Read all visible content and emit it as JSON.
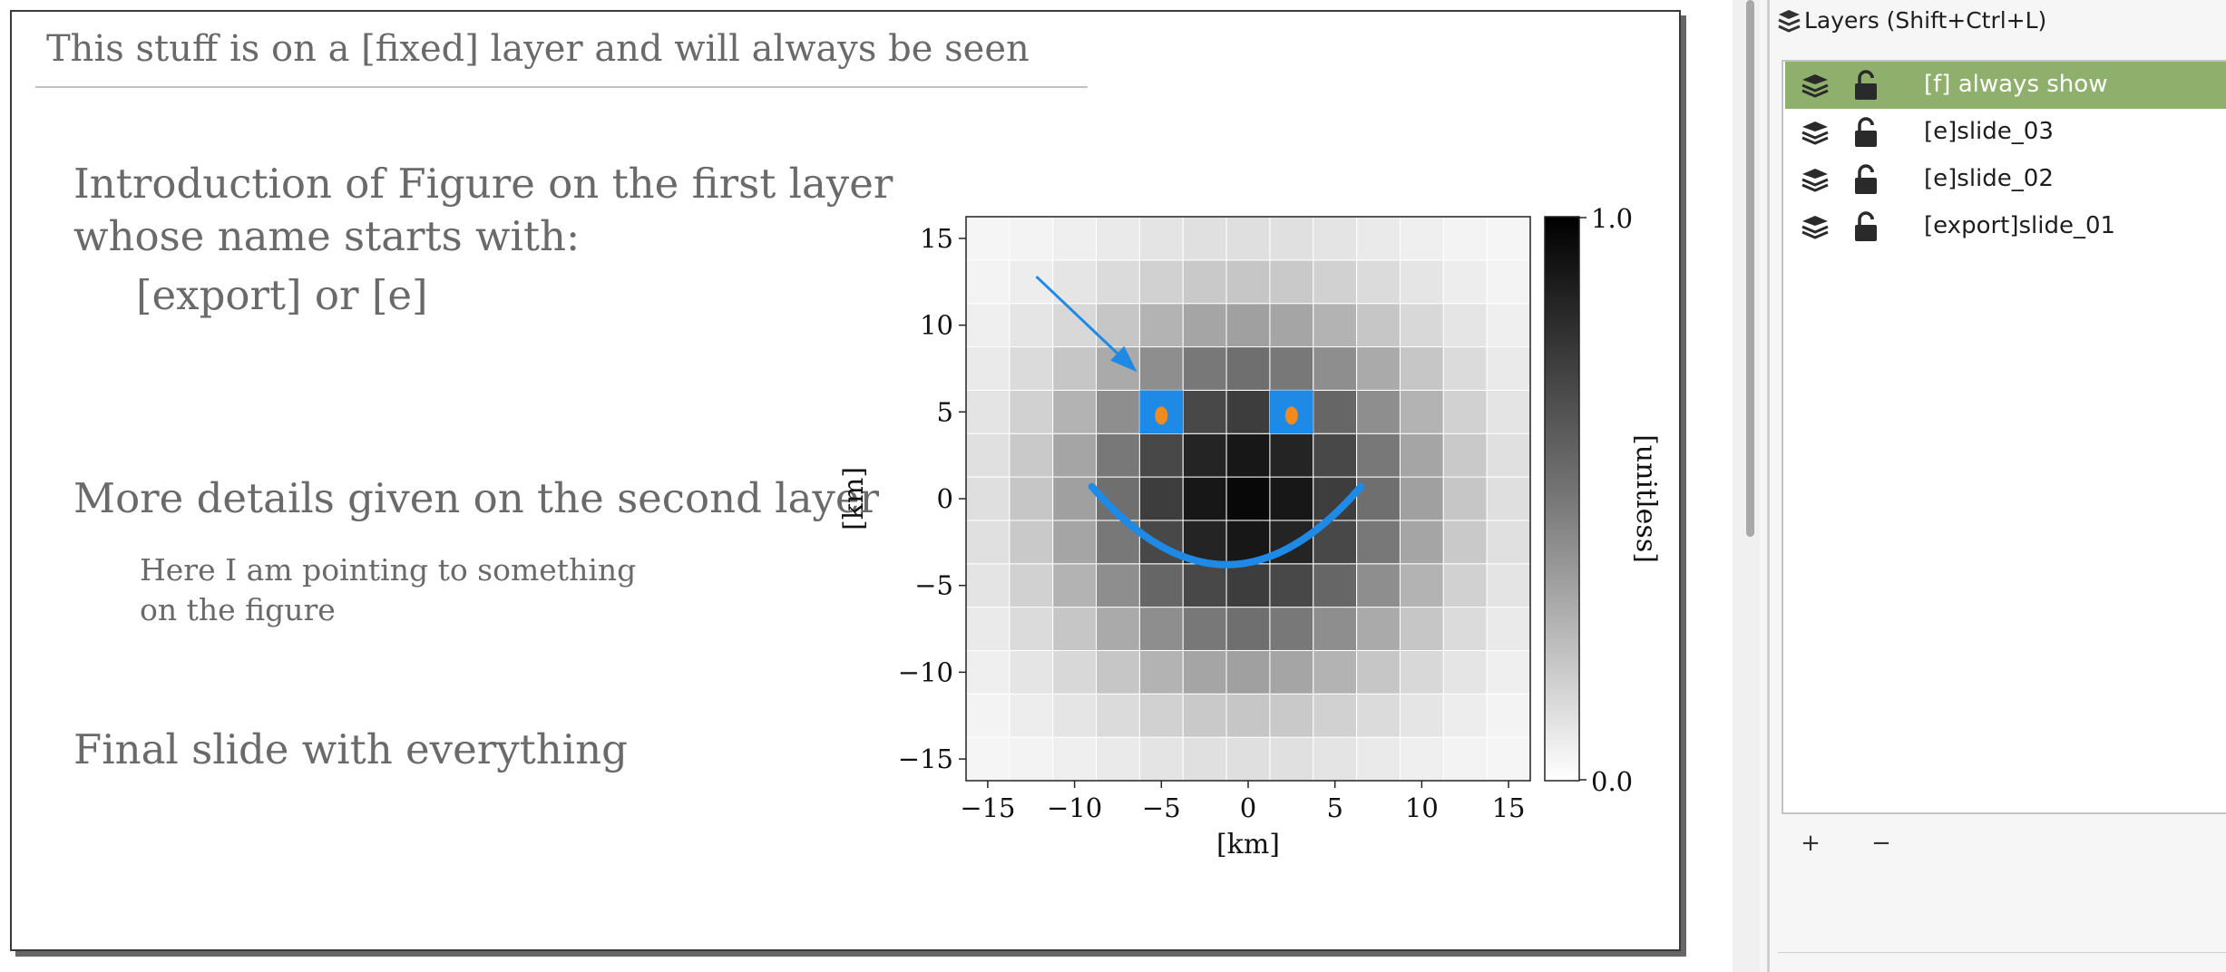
{
  "canvas": {
    "fixed_text": "This stuff is on a [fixed] layer and will always be seen",
    "intro_line1": "Introduction of Figure on the first layer",
    "intro_line2": "whose name starts with:",
    "intro_line3": "[export] or [e]",
    "details": "More details given on the second layer",
    "pointing_line1": "Here I am pointing to something",
    "pointing_line2": "on the figure",
    "final": "Final slide with everything"
  },
  "layers_panel": {
    "title": "Layers (Shift+Ctrl+L)",
    "layers": [
      {
        "name": "[f] always show",
        "selected": true,
        "visible": true,
        "locked": false
      },
      {
        "name": "[e]slide_03",
        "selected": false,
        "visible": true,
        "locked": false
      },
      {
        "name": "[e]slide_02",
        "selected": false,
        "visible": true,
        "locked": false
      },
      {
        "name": "[export]slide_01",
        "selected": false,
        "visible": true,
        "locked": false
      }
    ],
    "add_label": "+",
    "remove_label": "−",
    "selected_color": "#8fb06c"
  },
  "chart_data": {
    "type": "heatmap",
    "xlabel": "[km]",
    "ylabel": "[km]",
    "colorbar_label": "[unitless]",
    "colorbar_ticks": [
      "1.0",
      "0.0"
    ],
    "clim": [
      0.0,
      1.0
    ],
    "colormap": "Greys",
    "xlim": [
      -16.25,
      16.25
    ],
    "ylim": [
      -16.25,
      16.25
    ],
    "xticks": [
      -15,
      -10,
      -5,
      0,
      5,
      10,
      15
    ],
    "yticks": [
      15,
      10,
      5,
      0,
      -5,
      -10,
      -15
    ],
    "xtick_labels": [
      "−15",
      "−10",
      "−5",
      "0",
      "5",
      "10",
      "15"
    ],
    "ytick_labels": [
      "15",
      "10",
      "5",
      "0",
      "−5",
      "−10",
      "−15"
    ],
    "grid_centers": [
      -15,
      -12.5,
      -10,
      -7.5,
      -5,
      -2.5,
      0,
      2.5,
      5,
      7.5,
      10,
      12.5,
      15
    ],
    "z_function": "exp(-(x^2+y^2)/100)",
    "overlays": {
      "accent_color": "#1e8ae6",
      "eye_color": "#f28a1e",
      "eyes": [
        {
          "x": -5,
          "y": 5
        },
        {
          "x": 2.5,
          "y": 5
        }
      ],
      "smile": {
        "x_start": -9,
        "x_end": 6.5,
        "y_edge": 0.7,
        "y_bottom": -3.8
      },
      "arrow": {
        "x_from": -12.2,
        "y_from": 12.8,
        "x_to": -6.4,
        "y_to": 7.3
      }
    }
  }
}
